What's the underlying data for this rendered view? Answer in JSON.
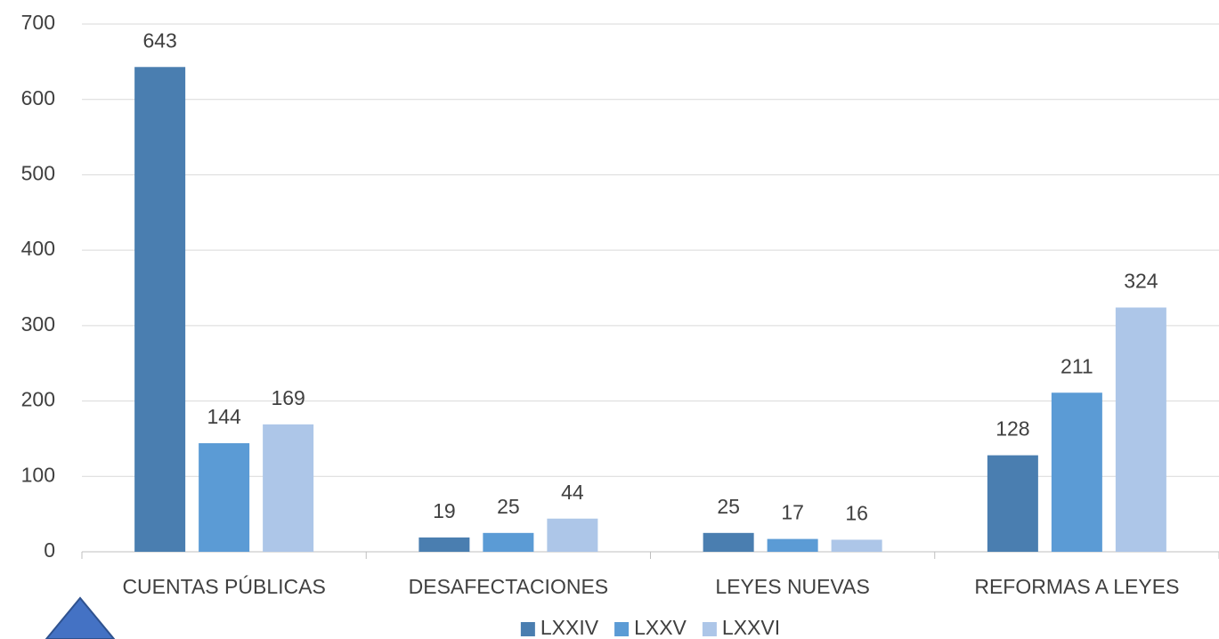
{
  "chart_data": {
    "type": "bar",
    "categories": [
      "CUENTAS PÚBLICAS",
      "DESAFECTACIONES",
      "LEYES NUEVAS",
      "REFORMAS A LEYES"
    ],
    "series": [
      {
        "name": "LXXIV",
        "color": "#4a7eb0",
        "values": [
          643,
          19,
          25,
          128
        ]
      },
      {
        "name": "LXXV",
        "color": "#5b9bd5",
        "values": [
          144,
          25,
          17,
          211
        ]
      },
      {
        "name": "LXXVI",
        "color": "#adc6e8",
        "values": [
          169,
          44,
          16,
          324
        ]
      }
    ],
    "ylim": [
      0,
      700
    ],
    "yticks": [
      0,
      100,
      200,
      300,
      400,
      500,
      600,
      700
    ],
    "grid": true,
    "legend": "bottom"
  }
}
